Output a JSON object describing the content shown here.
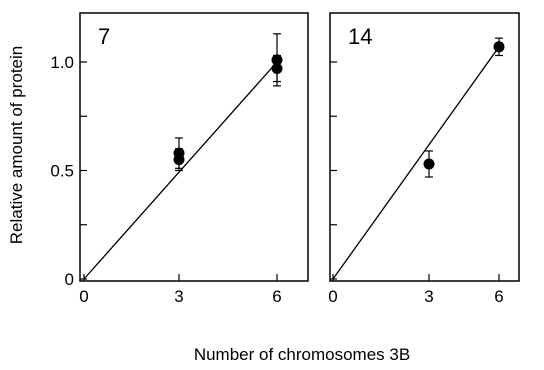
{
  "chart_data": [
    {
      "type": "scatter",
      "panel_label": "7",
      "xlabel": "Number of chromosomes 3B",
      "ylabel": "Relative amount of protein",
      "xlim": [
        0,
        7
      ],
      "ylim": [
        0,
        1.2
      ],
      "x_ticks": [
        0,
        3,
        6
      ],
      "y_ticks": [
        0,
        0.5,
        1.0
      ],
      "x_tick_labels": [
        "0",
        "3",
        "6"
      ],
      "y_tick_labels": [
        "0",
        "0.5",
        "1.0"
      ],
      "points": [
        {
          "x": 3,
          "y": 0.58,
          "err": 0.07
        },
        {
          "x": 3,
          "y": 0.55,
          "err": 0.05
        },
        {
          "x": 6,
          "y": 1.01,
          "err": 0.12
        },
        {
          "x": 6,
          "y": 0.97,
          "err": 0.06
        }
      ],
      "fit_line": {
        "x": [
          0,
          6
        ],
        "y": [
          0,
          1.0
        ]
      },
      "grid": false
    },
    {
      "type": "scatter",
      "panel_label": "14",
      "xlabel": "Number of chromosomes 3B",
      "ylabel": "",
      "xlim": [
        0,
        7
      ],
      "ylim": [
        0,
        1.2
      ],
      "x_ticks": [
        0,
        3,
        6
      ],
      "y_ticks": [
        0,
        0.5,
        1.0
      ],
      "x_tick_labels": [
        "0",
        "3",
        "6"
      ],
      "y_tick_labels": [],
      "points": [
        {
          "x": 3,
          "y": 0.53,
          "err": 0.06
        },
        {
          "x": 6,
          "y": 1.07,
          "err": 0.04
        }
      ],
      "fit_line": {
        "x": [
          0,
          6
        ],
        "y": [
          0,
          1.07
        ]
      },
      "grid": false
    }
  ],
  "figure": {
    "xlabel": "Number of chromosomes 3B",
    "ylabel": "Relative amount of protein"
  }
}
